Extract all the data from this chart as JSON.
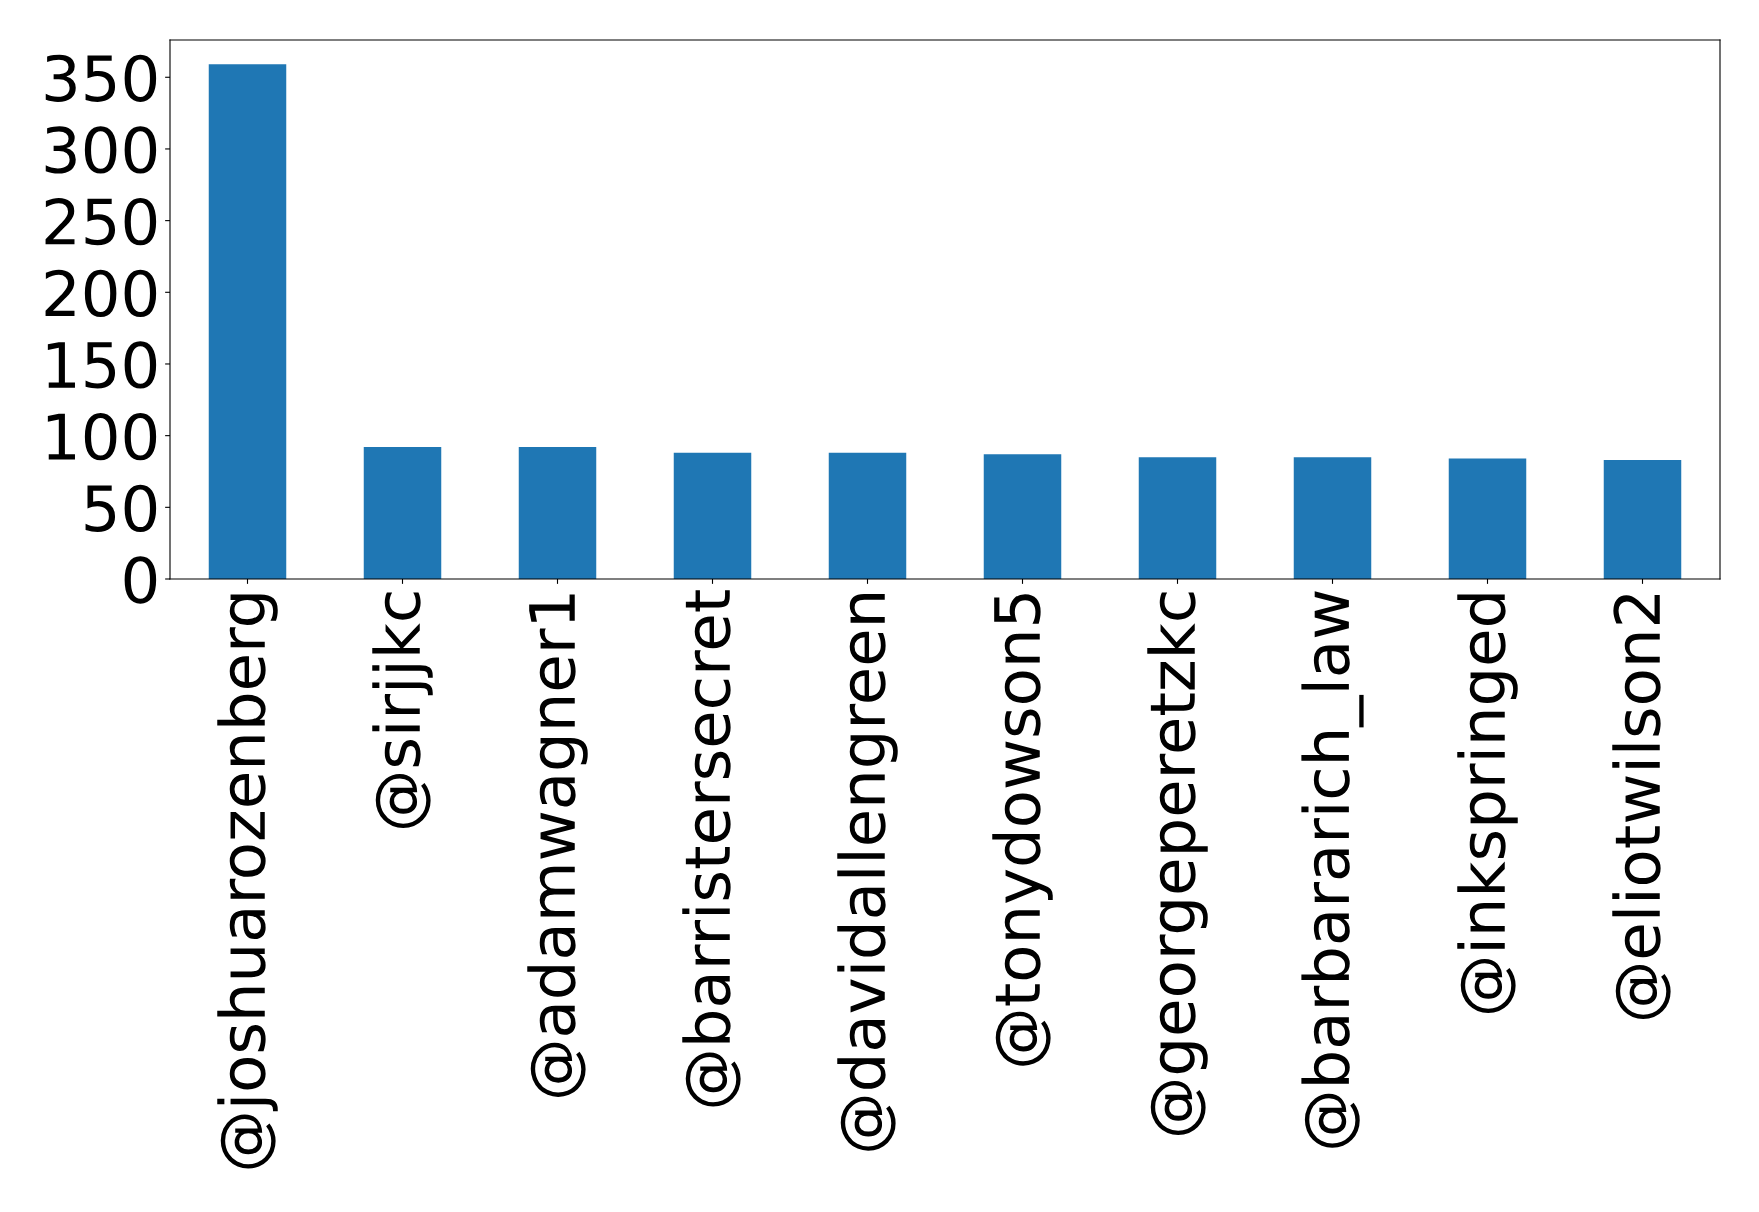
{
  "chart_data": {
    "type": "bar",
    "categories": [
      "@joshuarozenberg",
      "@sirjjkc",
      "@adamwagner1",
      "@barristersecret",
      "@davidallengreen",
      "@tonydowson5",
      "@georgeperetzkc",
      "@barbararich_law",
      "@inkspringed",
      "@eliotwilson2"
    ],
    "values": [
      359,
      92,
      92,
      88,
      88,
      87,
      85,
      85,
      84,
      83
    ],
    "color": "#1f77b4",
    "ylim": [
      0,
      376
    ],
    "yticks": [
      0,
      50,
      100,
      150,
      200,
      250,
      300,
      350
    ],
    "grid": false
  }
}
